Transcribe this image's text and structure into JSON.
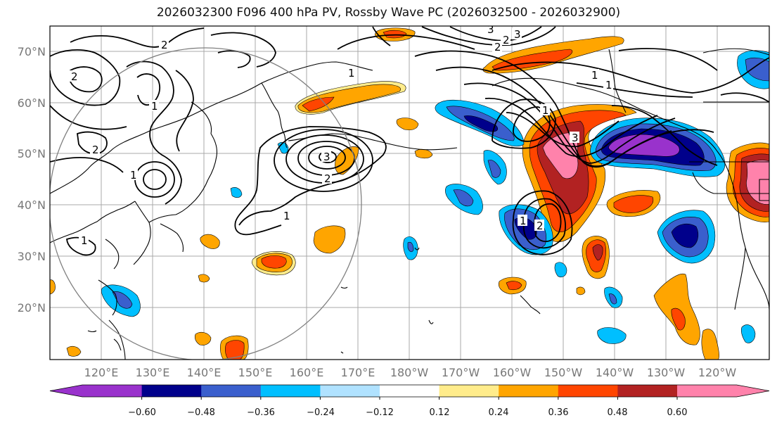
{
  "title": "2026032300 F096 400 hPa PV, Rossby Wave PC (2026032500 - 2026032900)",
  "lat_labels": [
    "70°N",
    "60°N",
    "50°N",
    "40°N",
    "30°N",
    "20°N"
  ],
  "lon_labels": [
    "120°E",
    "130°E",
    "140°E",
    "150°E",
    "160°E",
    "170°E",
    "180°W",
    "170°W",
    "160°W",
    "150°W",
    "140°W",
    "130°W",
    "120°W"
  ],
  "colorbar": {
    "colors": [
      "#9932cc",
      "#00008b",
      "#3a5fcd",
      "#00bfff",
      "#b0e2ff",
      "#ffffff",
      "#ffec8b",
      "#ffa500",
      "#ff4500",
      "#b22222",
      "#ff82ab"
    ],
    "tick_labels": [
      "−0.60",
      "−0.48",
      "−0.36",
      "−0.24",
      "−0.12",
      "0.12",
      "0.24",
      "0.36",
      "0.48",
      "0.60"
    ]
  },
  "contour_labels": [
    "2",
    "2",
    "1",
    "1",
    "3",
    "2",
    "1",
    "1",
    "3",
    "2",
    "1",
    "1",
    "3",
    "1",
    "1",
    "2",
    "3",
    "2",
    "2",
    "1"
  ]
}
